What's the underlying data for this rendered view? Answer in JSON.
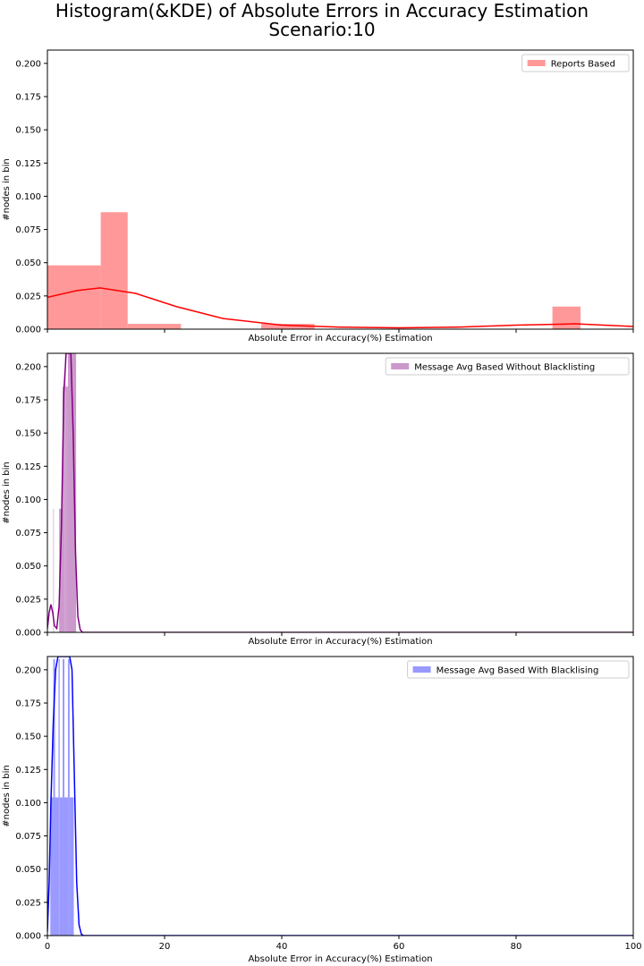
{
  "title_line1": "Histogram(&KDE) of Absolute Errors in Accuracy Estimation",
  "title_line2": "Scenario:10",
  "chart_data": [
    {
      "type": "bar",
      "subtype": "histogram+kde",
      "xlabel": "Absolute Error in Accuracy(%) Estimation",
      "ylabel": "#nodes in bin",
      "xlim": [
        0,
        100
      ],
      "ylim": [
        0,
        0.21
      ],
      "yticks": [
        "0.000",
        "0.025",
        "0.050",
        "0.075",
        "0.100",
        "0.125",
        "0.150",
        "0.175",
        "0.200"
      ],
      "xticks": [],
      "legend": {
        "label": "Reports Based",
        "position": "top-right"
      },
      "colors": {
        "fill": "#ff9999",
        "line": "#ff0000"
      },
      "bins": [
        {
          "x0": 0.0,
          "x1": 9.1,
          "height": 0.048
        },
        {
          "x0": 9.1,
          "x1": 13.7,
          "height": 0.088
        },
        {
          "x0": 13.7,
          "x1": 22.8,
          "height": 0.004
        },
        {
          "x0": 36.5,
          "x1": 45.6,
          "height": 0.004
        },
        {
          "x0": 86.2,
          "x1": 91.0,
          "height": 0.017
        }
      ],
      "kde": {
        "x": [
          0,
          5,
          9,
          15,
          22,
          30,
          40,
          50,
          60,
          70,
          80,
          90,
          100
        ],
        "y": [
          0.024,
          0.029,
          0.031,
          0.027,
          0.017,
          0.008,
          0.003,
          0.0015,
          0.001,
          0.0015,
          0.003,
          0.004,
          0.002
        ]
      }
    },
    {
      "type": "bar",
      "subtype": "histogram+kde",
      "xlabel": "Absolute Error in Accuracy(%) Estimation",
      "ylabel": "#nodes in bin",
      "xlim": [
        0,
        100
      ],
      "ylim": [
        0,
        0.21
      ],
      "yticks": [
        "0.000",
        "0.025",
        "0.050",
        "0.075",
        "0.100",
        "0.125",
        "0.150",
        "0.175",
        "0.200"
      ],
      "xticks": [],
      "legend": {
        "label": "Message Avg Based Without Blacklisting",
        "position": "top-right"
      },
      "colors": {
        "fill": "#cc99cc",
        "line": "#800080"
      },
      "bins": [
        {
          "x0": 1.0,
          "x1": 1.1,
          "height": 0.093
        },
        {
          "x0": 2.0,
          "x1": 2.6,
          "height": 0.093
        },
        {
          "x0": 2.6,
          "x1": 3.0,
          "height": 0.185
        },
        {
          "x0": 3.0,
          "x1": 3.1,
          "height": 0.21
        },
        {
          "x0": 3.1,
          "x1": 3.5,
          "height": 0.185
        },
        {
          "x0": 3.5,
          "x1": 4.9,
          "height": 0.21
        }
      ],
      "kde": {
        "x": [
          0,
          0.3,
          0.6,
          0.9,
          1.2,
          1.6,
          2.0,
          2.4,
          2.8,
          3.2,
          3.6,
          4.0,
          4.4,
          4.8,
          5.2,
          5.6,
          6.0,
          100
        ],
        "y": [
          0.003,
          0.015,
          0.021,
          0.015,
          0.005,
          0.003,
          0.02,
          0.08,
          0.18,
          0.21,
          0.21,
          0.21,
          0.15,
          0.06,
          0.012,
          0.002,
          0,
          0
        ]
      }
    },
    {
      "type": "bar",
      "subtype": "histogram+kde",
      "xlabel": "Absolute Error in Accuracy(%) Estimation",
      "ylabel": "#nodes in bin",
      "xlim": [
        0,
        100
      ],
      "ylim": [
        0,
        0.21
      ],
      "yticks": [
        "0.000",
        "0.025",
        "0.050",
        "0.075",
        "0.100",
        "0.125",
        "0.150",
        "0.175",
        "0.200"
      ],
      "xticks": [
        "0",
        "20",
        "40",
        "60",
        "80",
        "100"
      ],
      "legend": {
        "label": "Message Avg Based With Blacklising",
        "position": "top-right"
      },
      "colors": {
        "fill": "#9999ff",
        "line": "#0000ff"
      },
      "bins": [
        {
          "x0": 0.5,
          "x1": 1.0,
          "height": 0.104
        },
        {
          "x0": 1.0,
          "x1": 1.3,
          "height": 0.208
        },
        {
          "x0": 1.3,
          "x1": 1.9,
          "height": 0.104
        },
        {
          "x0": 1.9,
          "x1": 2.1,
          "height": 0.208
        },
        {
          "x0": 2.1,
          "x1": 2.6,
          "height": 0.104
        },
        {
          "x0": 2.6,
          "x1": 2.9,
          "height": 0.208
        },
        {
          "x0": 2.9,
          "x1": 3.5,
          "height": 0.104
        },
        {
          "x0": 3.5,
          "x1": 3.8,
          "height": 0.208
        },
        {
          "x0": 3.8,
          "x1": 4.5,
          "height": 0.104
        }
      ],
      "kde": {
        "x": [
          0,
          0.3,
          0.6,
          1.0,
          1.4,
          1.8,
          2.2,
          2.6,
          3.0,
          3.4,
          3.8,
          4.2,
          4.6,
          5.0,
          5.4,
          5.8,
          6.2,
          100
        ],
        "y": [
          0.003,
          0.04,
          0.1,
          0.16,
          0.2,
          0.21,
          0.21,
          0.21,
          0.21,
          0.21,
          0.21,
          0.2,
          0.12,
          0.04,
          0.008,
          0.001,
          0,
          0
        ]
      }
    }
  ]
}
